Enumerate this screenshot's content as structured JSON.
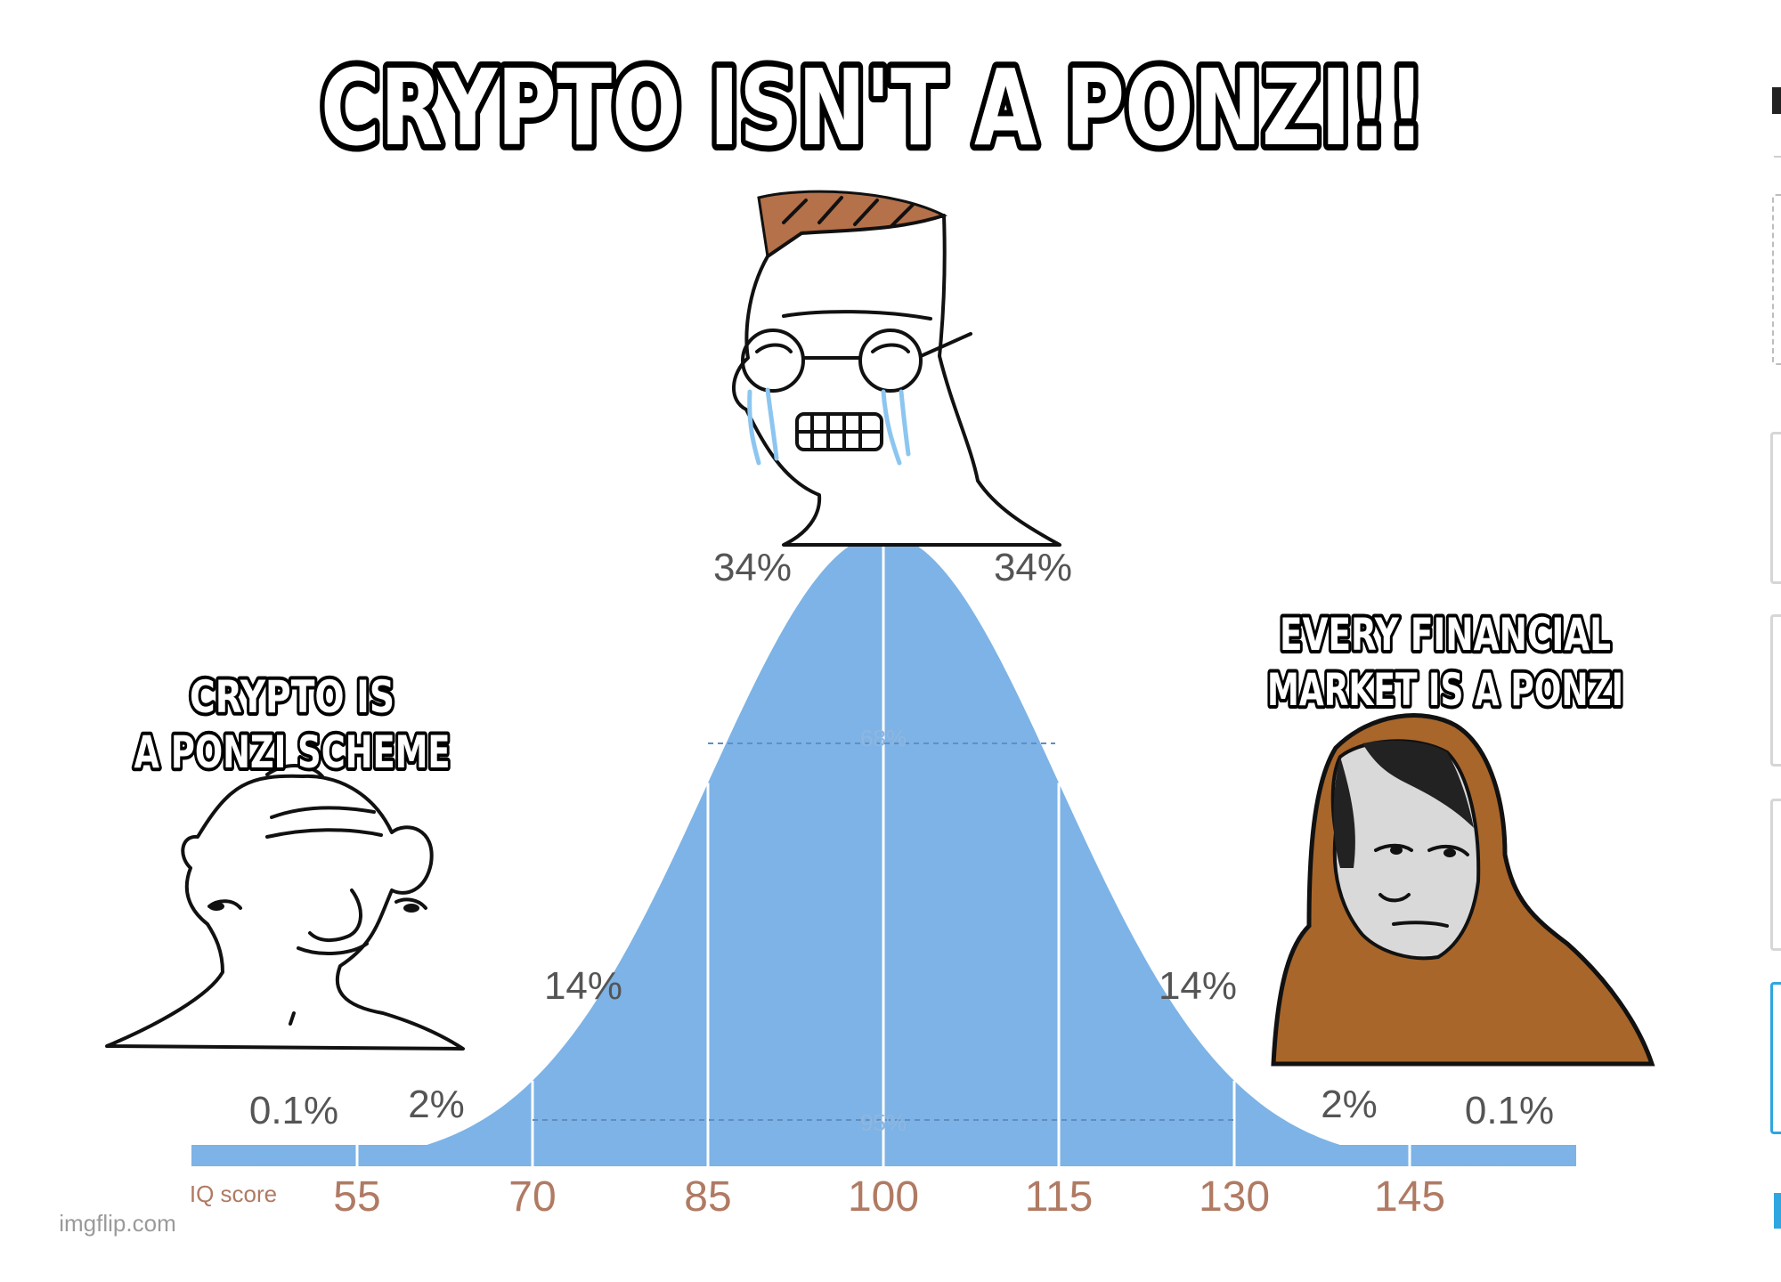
{
  "meme": {
    "top_caption": "CRYPTO ISN'T A PONZI!!",
    "left_caption_line1": "CRYPTO IS",
    "left_caption_line2": "A PONZI SCHEME",
    "right_caption_line1": "EVERY FINANCIAL",
    "right_caption_line2": "MARKET IS A PONZI",
    "watermark": "imgflip.com"
  },
  "chart_data": {
    "type": "area",
    "title": "",
    "xlabel": "IQ score",
    "ylabel": "",
    "x_ticks": [
      "55",
      "70",
      "85",
      "100",
      "115",
      "130",
      "145"
    ],
    "band_labels": [
      "0.1%",
      "2%",
      "14%",
      "34%",
      "34%",
      "14%",
      "2%",
      "0.1%"
    ],
    "inner_labels": [
      "68%",
      "95%"
    ],
    "mean": 100,
    "sd": 15,
    "fill_color": "#7db3e6"
  },
  "colors": {
    "curve": "#7db3e6",
    "tick_text": "#b07a63",
    "hood": "#a8662b",
    "hair": "#b5714a"
  }
}
